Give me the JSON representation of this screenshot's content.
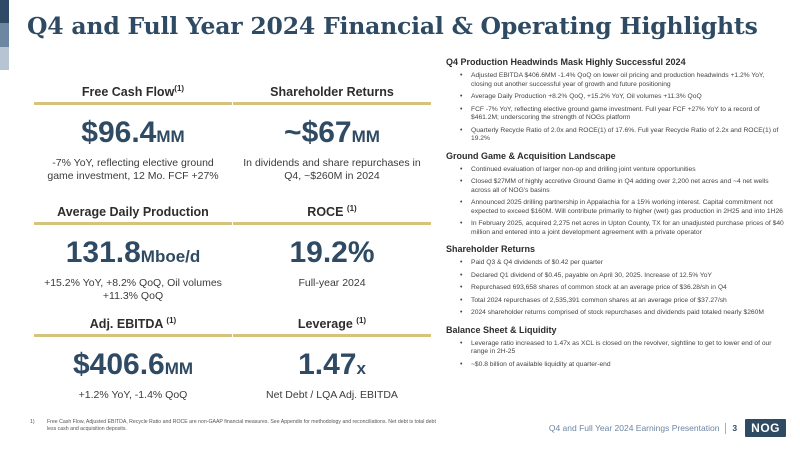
{
  "header": {
    "title": "Q4 and Full Year 2024 Financial & Operating Highlights"
  },
  "metrics": [
    {
      "label": "Free Cash Flow",
      "footnote_mark": "(1)",
      "value": "$96.4",
      "unit": "MM",
      "description": "-7% YoY, reflecting elective ground game investment, 12 Mo. FCF +27%"
    },
    {
      "label": "Shareholder Returns",
      "footnote_mark": "",
      "value": "~$67",
      "unit": "MM",
      "description": "In dividends and share repurchases in Q4, ~$260M in 2024"
    },
    {
      "label": "Average Daily Production",
      "footnote_mark": "",
      "value": "131.8",
      "unit": "Mboe/d",
      "description": "+15.2% YoY, +8.2% QoQ, Oil volumes +11.3% QoQ"
    },
    {
      "label": "ROCE",
      "footnote_mark": "(1)",
      "value": "19.2%",
      "unit": "",
      "description": "Full-year 2024"
    },
    {
      "label": "Adj. EBITDA",
      "footnote_mark": "(1)",
      "value": "$406.6",
      "unit": "MM",
      "description": "+1.2% YoY, -1.4% QoQ"
    },
    {
      "label": "Leverage",
      "footnote_mark": "(1)",
      "value": "1.47",
      "unit": "x",
      "description": "Net Debt / LQA Adj. EBITDA"
    }
  ],
  "sections": [
    {
      "heading": "Q4 Production Headwinds Mask Highly Successful 2024",
      "bullets": [
        "Adjusted EBITDA $406.6MM -1.4% QoQ on lower oil pricing and production headwinds +1.2% YoY, closing out another successful year of growth and future positioning",
        "Average Daily Production +8.2% QoQ, +15.2% YoY, Oil volumes +11.3% QoQ",
        "FCF -7% YoY, reflecting elective ground game investment. Full year FCF +27% YoY to a record of $461.2M; underscoring the strength of NOGs platform",
        "Quarterly Recycle Ratio of 2.0x and ROCE(1) of 17.6%. Full year Recycle Ratio of 2.2x and ROCE(1) of 19.2%"
      ]
    },
    {
      "heading": "Ground Game & Acquisition Landscape",
      "bullets": [
        "Continued evaluation of larger non-op and drilling joint venture opportunities",
        "Closed $27MM of highly accretive Ground Game in Q4 adding over 2,200 net acres and ~4 net wells across all of NOG's basins",
        "Announced 2025 drilling partnership in Appalachia for a 15% working interest. Capital commitment not expected to exceed $160M. Will contribute primarily to higher (wet) gas production in 2H25 and into 1H26",
        "In February 2025, acquired 2,275 net acres in Upton County, TX for an unadjusted purchase prices of $40 million and entered into a joint development agreement with a private operator"
      ]
    },
    {
      "heading": "Shareholder Returns",
      "bullets": [
        "Paid Q3 & Q4 dividends of $0.42 per quarter",
        "Declared Q1 dividend of $0.45, payable on April 30, 2025. Increase of 12.5% YoY",
        "Repurchased 693,658 shares of common stock at an average price of $36.28/sh in Q4",
        "Total 2024 repurchases of 2,535,391 common shares at an average price of $37.27/sh",
        "2024 shareholder returns comprised of stock repurchases and dividends paid totaled nearly $260M"
      ]
    },
    {
      "heading": "Balance Sheet & Liquidity",
      "bullets": [
        "Leverage ratio increased to 1.47x as XCL is closed on the revolver, sightline to get to lower end of our range in 2H-25",
        "~$0.8 billion of available liquidity at quarter-end"
      ]
    }
  ],
  "footnote": {
    "number": "1)",
    "text": "Free Cash Flow, Adjusted EBITDA, Recycle Ratio and ROCE are non-GAAP financial measures. See Appendix for methodology and reconciliations. Net debt is total debt less cash and acquisition deposits."
  },
  "footer": {
    "presentation": "Q4 and Full Year 2024 Earnings Presentation",
    "page": "3",
    "logo": "NOG"
  },
  "colors": {
    "title": "#2f4a63",
    "gold_rule": "#d6c27a",
    "accent_dark": "#2e4a66",
    "accent_mid": "#6d86a1",
    "accent_light": "#b7c5d3"
  }
}
